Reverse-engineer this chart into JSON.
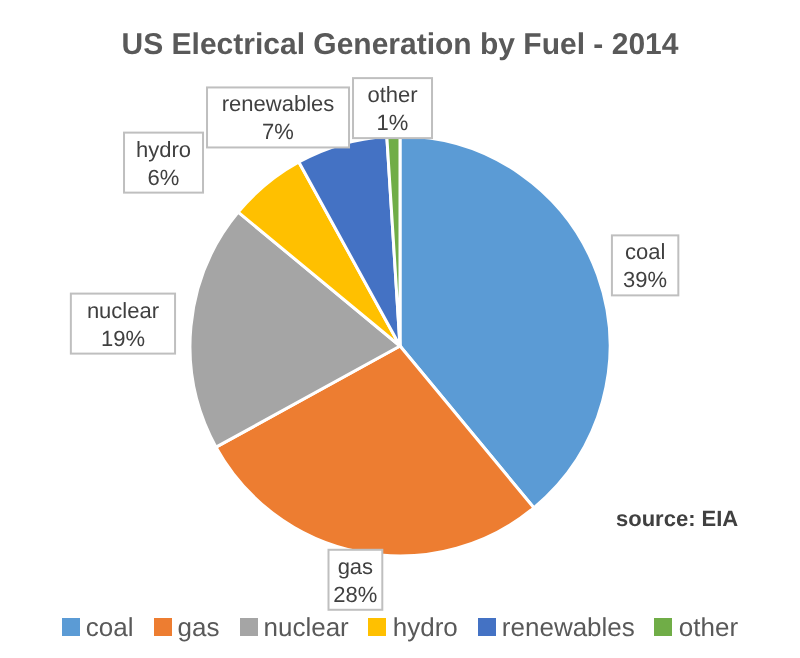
{
  "chart_data": {
    "type": "pie",
    "title": "US Electrical Generation by Fuel - 2014",
    "categories": [
      "coal",
      "gas",
      "nuclear",
      "hydro",
      "renewables",
      "other"
    ],
    "values": [
      39,
      28,
      19,
      6,
      7,
      1
    ],
    "value_labels": [
      "39%",
      "28%",
      "19%",
      "6%",
      "7%",
      "1%"
    ],
    "colors": [
      "#5b9bd5",
      "#ed7d31",
      "#a5a5a5",
      "#ffc000",
      "#4472c4",
      "#70ad47"
    ],
    "legend": "bottom",
    "annotations": [
      "source: EIA"
    ]
  }
}
